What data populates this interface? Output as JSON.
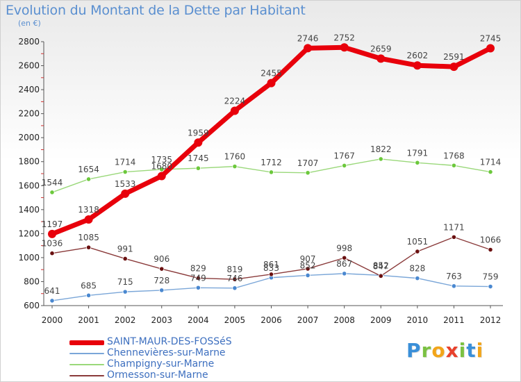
{
  "title": "Evolution du Montant de la Dette par Habitant",
  "subtitle": "(en €)",
  "logo": {
    "text": "Proxiti",
    "letters": [
      {
        "char": "P",
        "color": "#3a8fd8"
      },
      {
        "char": "r",
        "color": "#7bc142"
      },
      {
        "char": "o",
        "color": "#f2a51a"
      },
      {
        "char": "x",
        "color": "#e8412c"
      },
      {
        "char": "i",
        "color": "#7bc142"
      },
      {
        "char": "t",
        "color": "#3a8fd8"
      },
      {
        "char": "i",
        "color": "#f2a51a"
      }
    ]
  },
  "chart_data": {
    "type": "line",
    "title": "Evolution du Montant de la Dette par Habitant",
    "subtitle": "(en €)",
    "x": [
      2000,
      2001,
      2002,
      2003,
      2004,
      2005,
      2006,
      2007,
      2008,
      2009,
      2010,
      2011,
      2012
    ],
    "ylim": [
      600,
      2800
    ],
    "yticks": [
      600,
      800,
      1000,
      1200,
      1400,
      1600,
      1800,
      2000,
      2200,
      2400,
      2600,
      2800
    ],
    "grid": false,
    "legend_position": "bottom-left",
    "series": [
      {
        "name": "SAINT-MAUR-DES-FOSSéS",
        "color": "#e8000b",
        "marker": "#e8000b",
        "values": [
          1197,
          1318,
          1533,
          1680,
          1959,
          2224,
          2455,
          2746,
          2752,
          2659,
          2602,
          2591,
          2745
        ]
      },
      {
        "name": "Chennevières-sur-Marne",
        "color": "#7aa6d8",
        "marker": "#4a88d0",
        "values": [
          641,
          685,
          715,
          728,
          749,
          746,
          833,
          852,
          867,
          852,
          828,
          763,
          759
        ]
      },
      {
        "name": "Champigny-sur-Marne",
        "color": "#9ad87a",
        "marker": "#6cc83c",
        "values": [
          1544,
          1654,
          1714,
          1735,
          1745,
          1760,
          1712,
          1707,
          1767,
          1822,
          1791,
          1768,
          1714
        ]
      },
      {
        "name": "Ormesson-sur-Marne",
        "color": "#8a3a3a",
        "marker": "#6a1010",
        "values": [
          1036,
          1085,
          991,
          906,
          829,
          819,
          861,
          907,
          998,
          847,
          1051,
          1171,
          1066
        ]
      }
    ]
  }
}
